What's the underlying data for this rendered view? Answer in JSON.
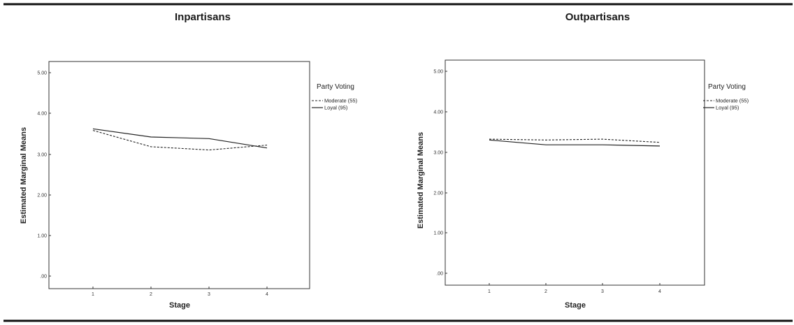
{
  "chart_data": [
    {
      "type": "line",
      "title": "Inpartisans",
      "xlabel": "Stage",
      "ylabel": "Estimated Marginal Means",
      "x": [
        1,
        2,
        3,
        4
      ],
      "x_tick_labels": [
        "1",
        "2",
        "3",
        "4"
      ],
      "y_tick_labels": [
        ".00",
        "1.00",
        "2.00",
        "3.00",
        "4.00",
        "5.00"
      ],
      "ylim": [
        0,
        5
      ],
      "legend_title": "Party Voting",
      "legend_position": "right",
      "series": [
        {
          "name": "Moderate (55)",
          "style": "dashed",
          "values": [
            3.58,
            3.18,
            3.1,
            3.22
          ]
        },
        {
          "name": "Loyal (95)",
          "style": "solid",
          "values": [
            3.62,
            3.42,
            3.38,
            3.15
          ]
        }
      ]
    },
    {
      "type": "line",
      "title": "Outpartisans",
      "xlabel": "Stage",
      "ylabel": "Estimated Marginal Means",
      "x": [
        1,
        2,
        3,
        4
      ],
      "x_tick_labels": [
        "1",
        "2",
        "3",
        "4"
      ],
      "y_tick_labels": [
        ".00",
        "1.00",
        "2.00",
        "3.00",
        "4.00",
        "5.00"
      ],
      "ylim": [
        0,
        5
      ],
      "legend_title": "Party Voting",
      "legend_position": "right",
      "series": [
        {
          "name": "Moderate (55)",
          "style": "dashed",
          "values": [
            3.32,
            3.3,
            3.32,
            3.24
          ]
        },
        {
          "name": "Loyal (95)",
          "style": "solid",
          "values": [
            3.3,
            3.18,
            3.18,
            3.15
          ]
        }
      ]
    }
  ],
  "colors": {
    "line": "#222222",
    "frame": "#333333",
    "rule": "#111111"
  }
}
